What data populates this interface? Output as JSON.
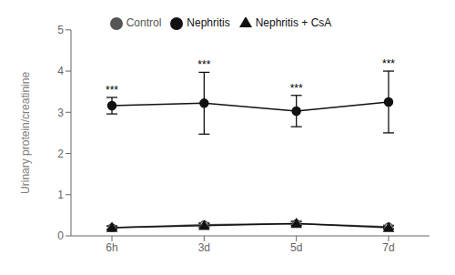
{
  "chart_data": {
    "type": "line",
    "categories": [
      "6h",
      "3d",
      "5d",
      "7d"
    ],
    "series": [
      {
        "name": "Control",
        "color": "#555555",
        "marker": "open_circle",
        "values": [
          0.2,
          0.27,
          0.3,
          0.22
        ],
        "errors": [
          0.04,
          0.05,
          0.05,
          0.04
        ]
      },
      {
        "name": "Nephritis",
        "color": "#111111",
        "marker": "circle",
        "values": [
          3.16,
          3.22,
          3.03,
          3.25
        ],
        "errors": [
          0.2,
          0.75,
          0.38,
          0.75
        ]
      },
      {
        "name": "Nephritis + CsA",
        "color": "#111111",
        "marker": "triangle",
        "values": [
          0.2,
          0.25,
          0.3,
          0.2
        ],
        "errors": [
          0.04,
          0.05,
          0.05,
          0.04
        ]
      }
    ],
    "ylabel": "Urinary protein/creatinine",
    "ylim": [
      0,
      5
    ],
    "yticks": [
      0,
      1,
      2,
      3,
      4,
      5
    ],
    "annotations": [
      {
        "x": "6h",
        "y": 3.4,
        "text": "***"
      },
      {
        "x": "3d",
        "y": 4.02,
        "text": "***"
      },
      {
        "x": "5d",
        "y": 3.44,
        "text": "***"
      },
      {
        "x": "7d",
        "y": 4.04,
        "text": "***"
      }
    ],
    "legend": "top",
    "grid": false
  }
}
